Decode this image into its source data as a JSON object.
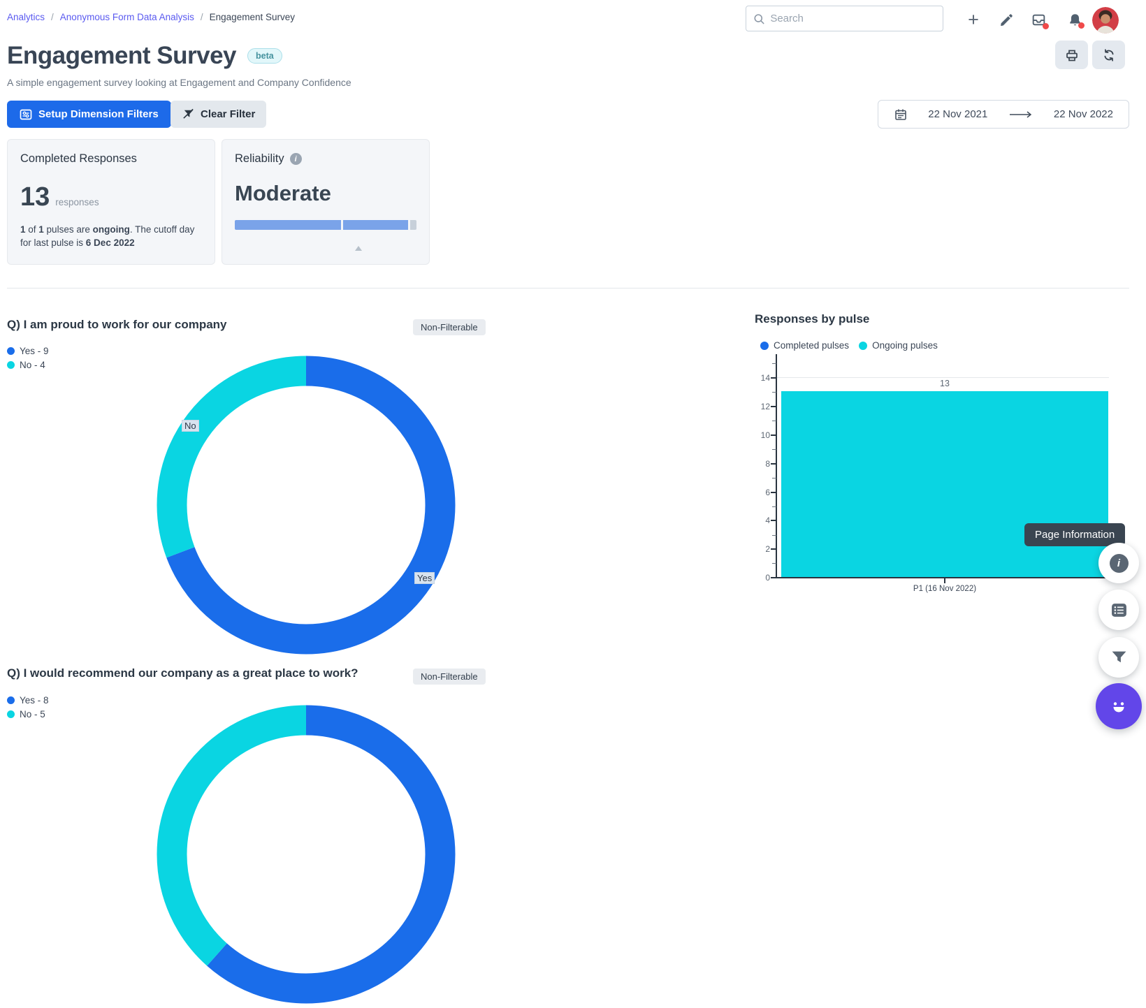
{
  "breadcrumb": {
    "items": [
      "Analytics",
      "Anonymous Form Data Analysis",
      "Engagement Survey"
    ],
    "separator": "/"
  },
  "topbar": {
    "search_placeholder": "Search"
  },
  "header": {
    "title": "Engagement Survey",
    "badge": "beta",
    "subtitle": "A simple engagement survey looking at Engagement and Company Confidence"
  },
  "toolbar": {
    "setup_filters_label": "Setup Dimension Filters",
    "clear_filter_label": "Clear Filter"
  },
  "daterange": {
    "from": "22 Nov 2021",
    "to": "22 Nov 2022"
  },
  "cards": {
    "completed": {
      "title": "Completed Responses",
      "value": "13",
      "unit": "responses",
      "note": {
        "b1": "1",
        "t1": " of ",
        "b2": "1",
        "t2": " pulses are ",
        "b3": "ongoing",
        "t3": ". The cutoff day for last pulse is ",
        "b4": "6 Dec 2022"
      }
    },
    "reliability": {
      "title": "Reliability",
      "value": "Moderate"
    }
  },
  "sections": {
    "q1": {
      "title": "Q) I am proud to work for our company",
      "badge": "Non-Filterable",
      "legend": [
        "Yes - 9",
        "No - 4"
      ],
      "slice_labels": {
        "yes": "Yes",
        "no": "No"
      }
    },
    "pulse": {
      "title": "Responses by pulse",
      "legend": [
        "Completed pulses",
        "Ongoing pulses"
      ],
      "yticks": [
        "0",
        "2",
        "4",
        "6",
        "8",
        "10",
        "12",
        "14"
      ],
      "bar_value_label": "13",
      "xtick_label": "P1 (16 Nov 2022)"
    },
    "q2": {
      "title": "Q) I would recommend our company as a great place to work?",
      "badge": "Non-Filterable",
      "legend": [
        "Yes - 8",
        "No - 5"
      ]
    }
  },
  "tooltip": {
    "label": "Page Information"
  },
  "colors": {
    "yes_blue": "#1a6dea",
    "no_cyan": "#0ad5e2",
    "reliability_fill": "#7aa3e9",
    "reliability_rest": "#c7d0da",
    "chat_purple": "#6246e9"
  },
  "chart_data": [
    {
      "type": "pie",
      "variant": "donut",
      "title": "Q) I am proud to work for our company",
      "labels": [
        "Yes",
        "No"
      ],
      "values": [
        9,
        4
      ],
      "colors": [
        "#1a6dea",
        "#0ad5e2"
      ],
      "legend_position": "top-left",
      "start": "top, clockwise, Yes first"
    },
    {
      "type": "bar",
      "title": "Responses by pulse",
      "categories": [
        "P1 (16 Nov 2022)"
      ],
      "series": [
        {
          "name": "Completed pulses",
          "color": "#1a6dea",
          "values": [
            0
          ]
        },
        {
          "name": "Ongoing pulses",
          "color": "#0ad5e2",
          "values": [
            13
          ]
        }
      ],
      "bar_value_labels": [
        13
      ],
      "ylim": [
        0,
        14
      ],
      "xlabel": "",
      "ylabel": "",
      "grid": "single horizontal gridline at y=14",
      "legend_position": "top-left"
    },
    {
      "type": "pie",
      "variant": "donut",
      "title": "Q) I would recommend our company as a great place to work?",
      "labels": [
        "Yes",
        "No"
      ],
      "values": [
        8,
        5
      ],
      "colors": [
        "#1a6dea",
        "#0ad5e2"
      ],
      "note": "only top of donut visible at bottom edge of viewport"
    }
  ]
}
